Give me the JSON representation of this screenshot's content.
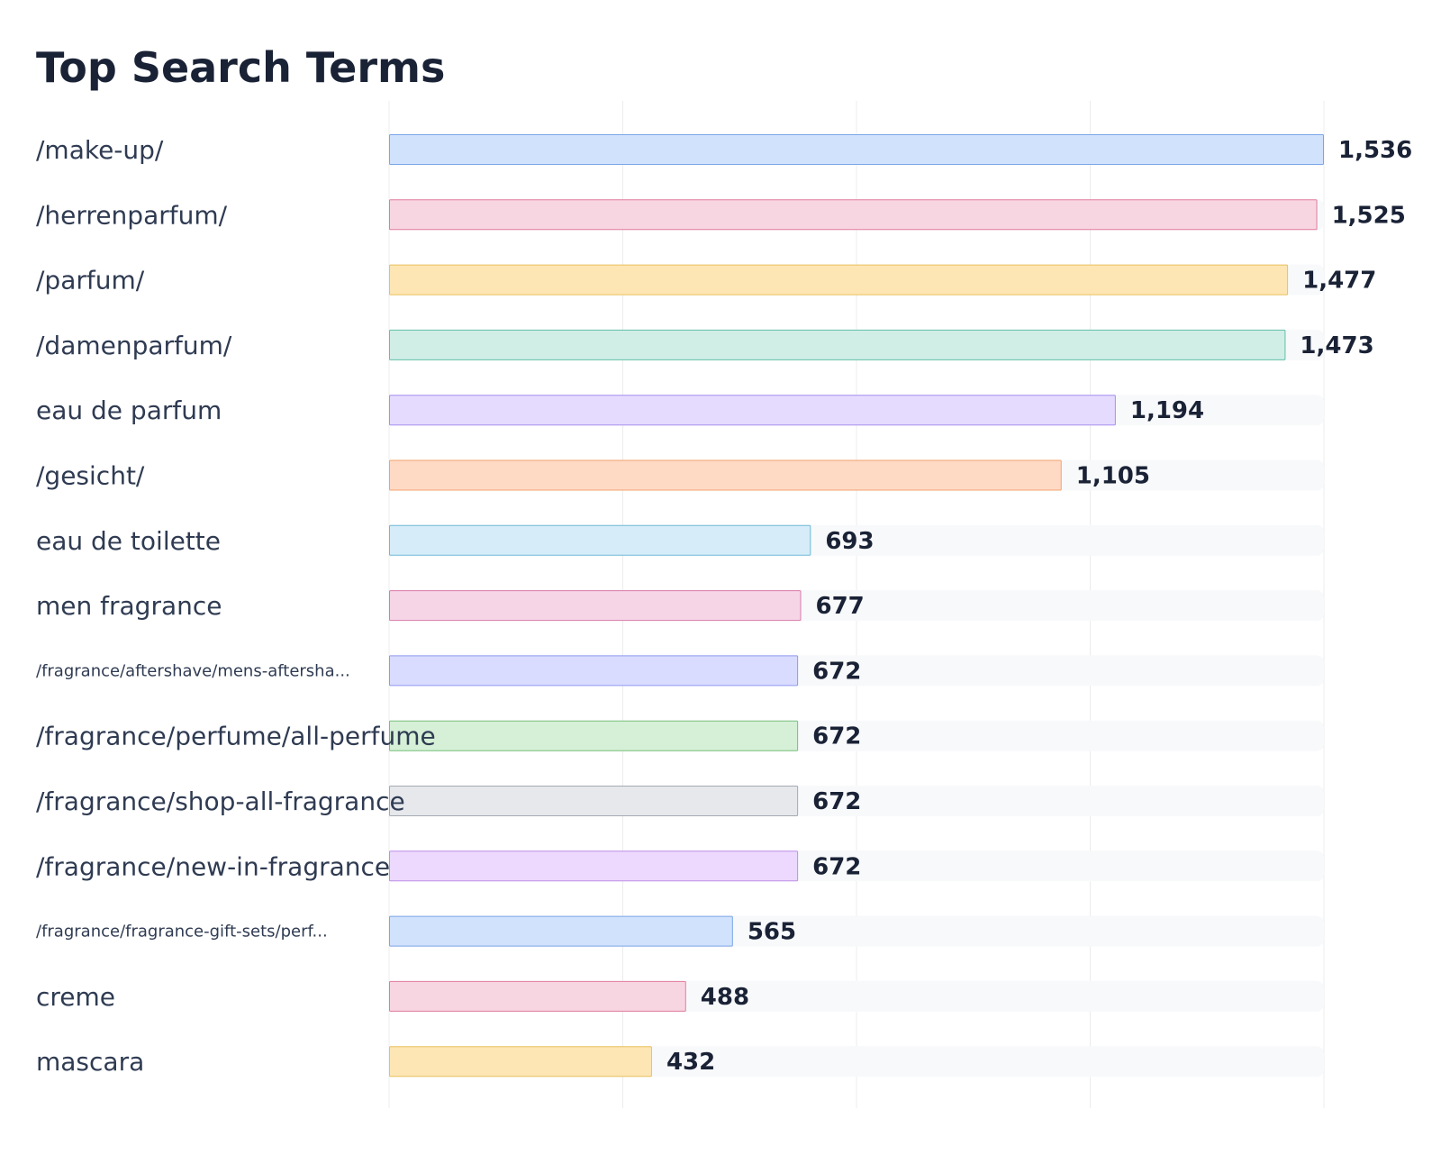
{
  "chart_data": {
    "type": "bar",
    "orientation": "horizontal",
    "title": "Top Search Terms",
    "xlabel": "",
    "ylabel": "",
    "xlim": [
      0,
      1536
    ],
    "grid": true,
    "legend": "none",
    "categories": [
      "/make-up/",
      "/herrenparfum/",
      "/parfum/",
      "/damenparfum/",
      "eau de parfum",
      "/gesicht/",
      "eau de toilette",
      "men fragrance",
      "/fragrance/aftershave/mens-aftersha...",
      "/fragrance/perfume/all-perfume",
      "/fragrance/shop-all-fragrance",
      "/fragrance/new-in-fragrance",
      "/fragrance/fragrance-gift-sets/perf...",
      "creme",
      "mascara"
    ],
    "values": [
      1536,
      1525,
      1477,
      1473,
      1194,
      1105,
      693,
      677,
      672,
      672,
      672,
      672,
      565,
      488,
      432
    ],
    "value_labels": [
      "1,536",
      "1,525",
      "1,477",
      "1,473",
      "1,194",
      "1,105",
      "693",
      "677",
      "672",
      "672",
      "672",
      "672",
      "565",
      "488",
      "432"
    ],
    "bar_colors": [
      {
        "fill": "#d1e2fd",
        "stroke": "#7aa5e6"
      },
      {
        "fill": "#f8d6e1",
        "stroke": "#e07b9b"
      },
      {
        "fill": "#fde6b4",
        "stroke": "#e9c05c"
      },
      {
        "fill": "#d0ede6",
        "stroke": "#62c0a8"
      },
      {
        "fill": "#e5dbfe",
        "stroke": "#a58ff0"
      },
      {
        "fill": "#fedac5",
        "stroke": "#f0a36e"
      },
      {
        "fill": "#d6ecf8",
        "stroke": "#6fb8d6"
      },
      {
        "fill": "#f6d5e7",
        "stroke": "#d97ba8"
      },
      {
        "fill": "#d9dcfe",
        "stroke": "#8f98ef"
      },
      {
        "fill": "#d5f0d6",
        "stroke": "#77c07b"
      },
      {
        "fill": "#e6e8ec",
        "stroke": "#a5aab3"
      },
      {
        "fill": "#ecd9fd",
        "stroke": "#bd8ee8"
      },
      {
        "fill": "#d1e2fd",
        "stroke": "#7aa5e6"
      },
      {
        "fill": "#f8d6e1",
        "stroke": "#e07b9b"
      },
      {
        "fill": "#fde6b4",
        "stroke": "#e9c05c"
      }
    ]
  }
}
